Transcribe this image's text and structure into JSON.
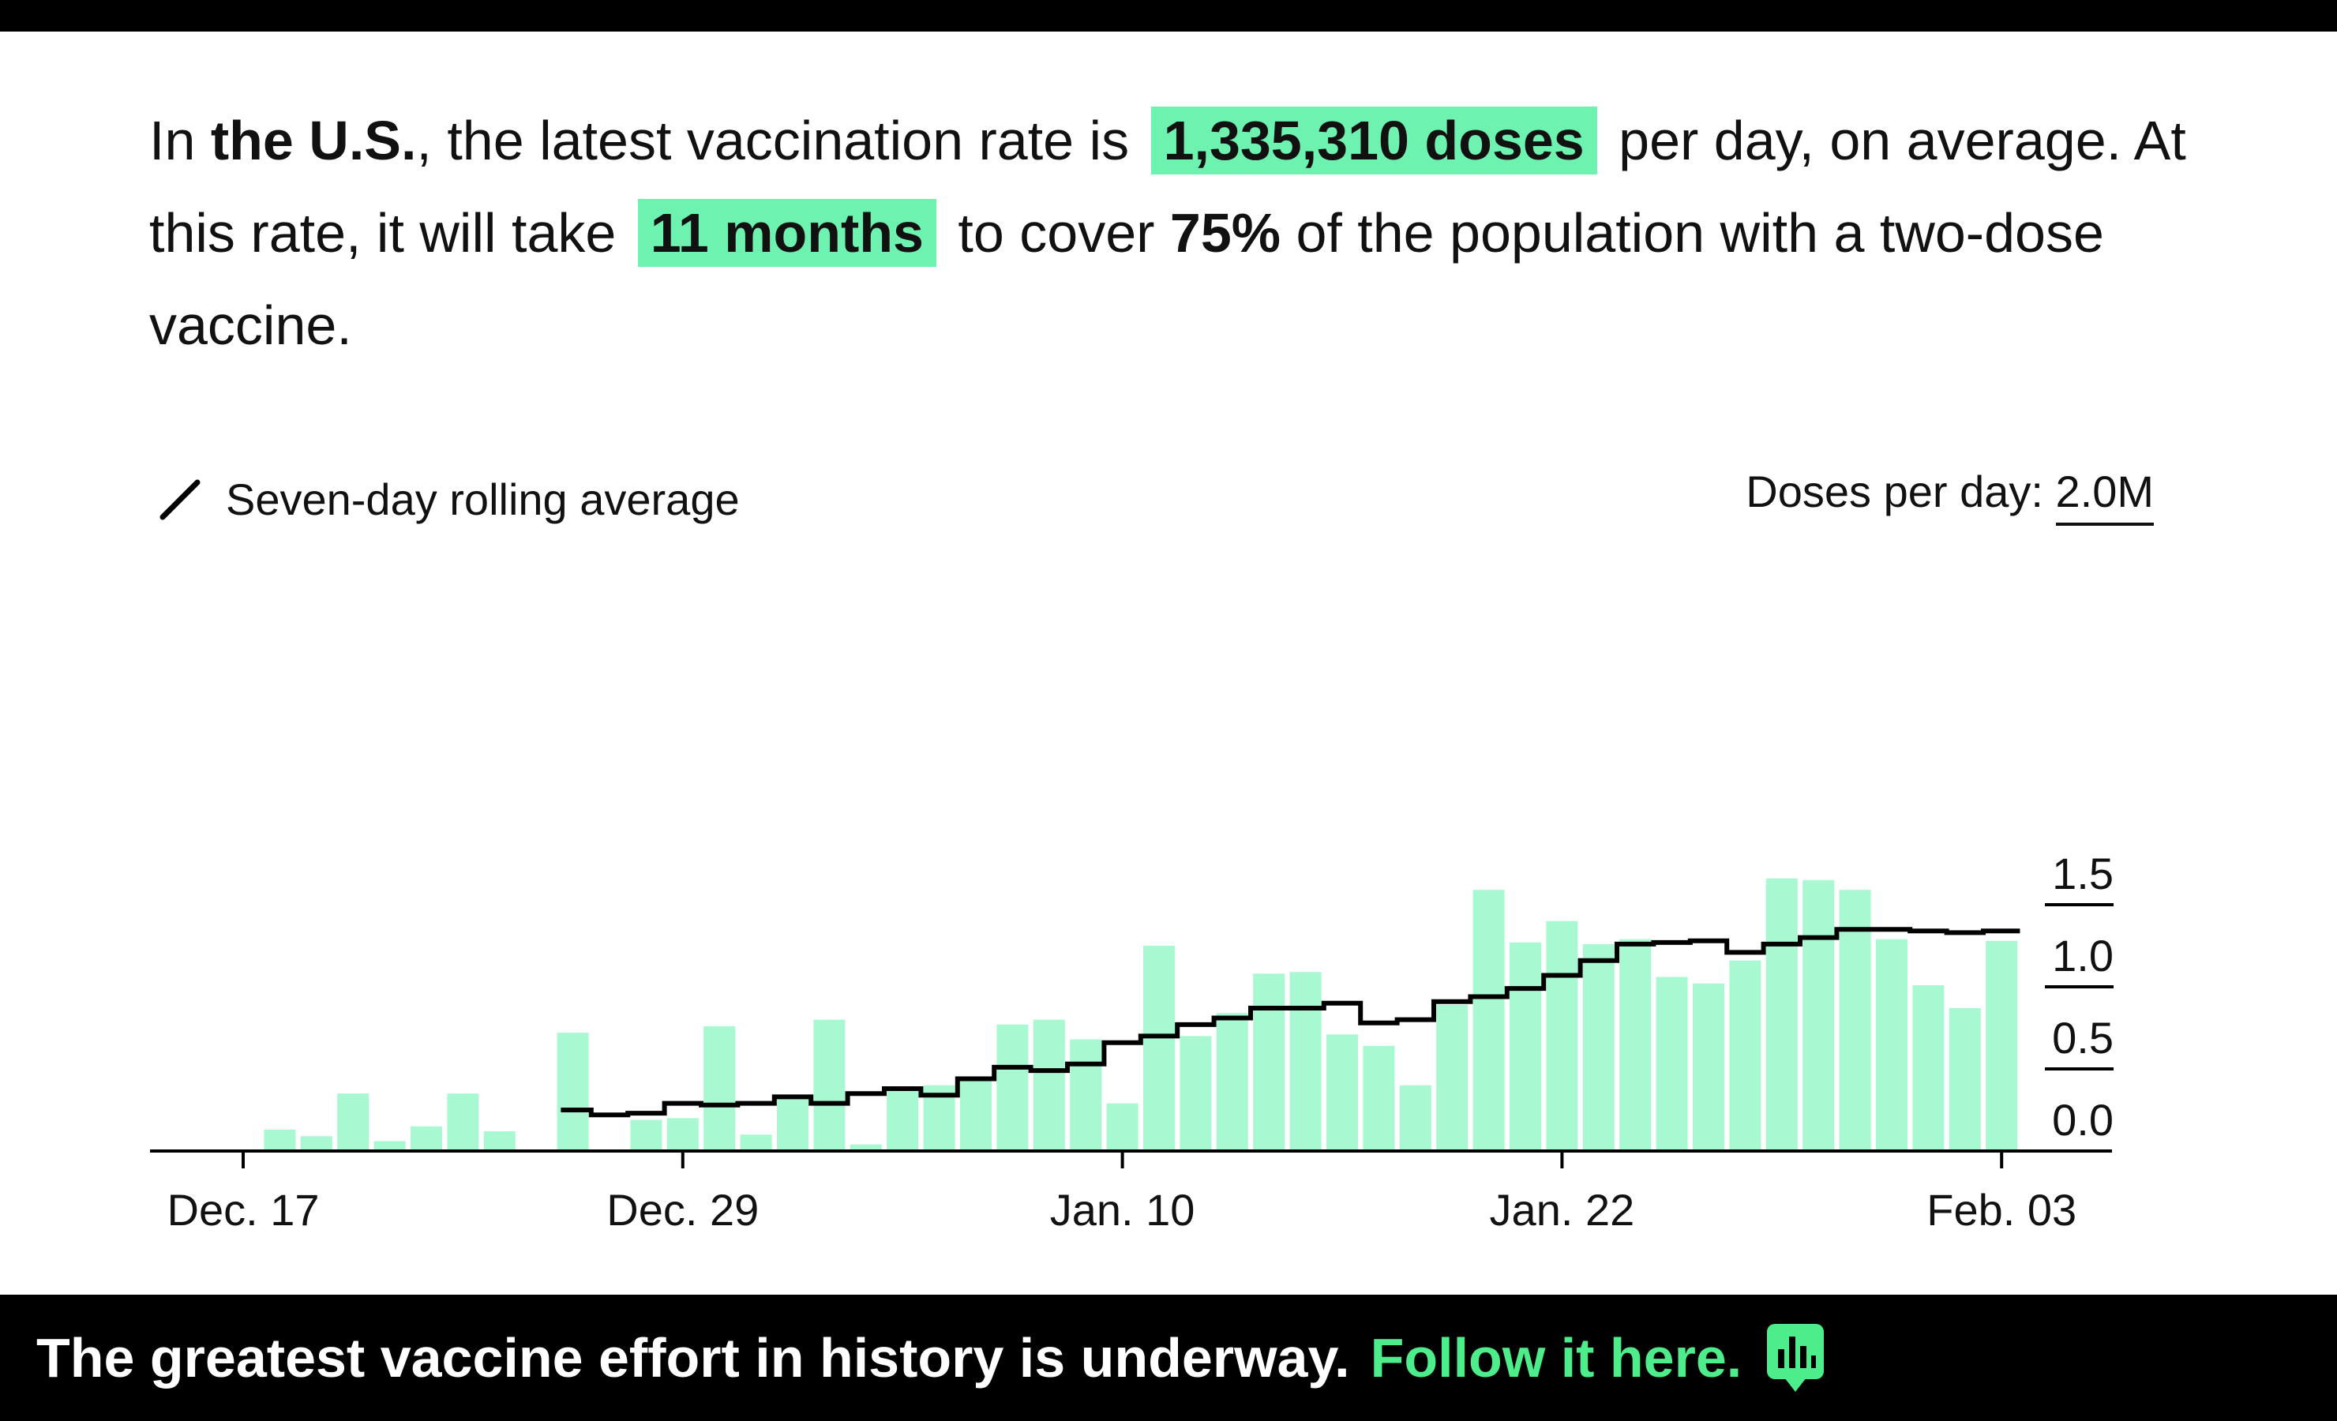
{
  "headline": {
    "p1": "In ",
    "region": "the U.S.",
    "p2": ", the latest vaccination rate is ",
    "rate": "1,335,310 doses",
    "p3": " per day, on average. At this rate, it will take ",
    "duration": "11 months",
    "p4": " to cover ",
    "percent": "75%",
    "p5": " of the population with a two-dose vaccine."
  },
  "legend": {
    "label": "Seven-day rolling average"
  },
  "units": {
    "prefix": "Doses per day: ",
    "value": "2.0M"
  },
  "footer": {
    "text": "The greatest vaccine effort in history is underway.",
    "link": "Follow it here.",
    "icon": "bar-chart-chat-icon"
  },
  "colors": {
    "bar": "#a8f9d2",
    "line": "#000000",
    "highlight": "#6ef2b0",
    "footer_link": "#4eed8c"
  },
  "chart_data": {
    "type": "bar",
    "x_start": "2020-12-17",
    "x_end": "2021-02-03",
    "xticks": [
      "Dec. 17",
      "Dec. 29",
      "Jan. 10",
      "Jan. 22",
      "Feb. 03"
    ],
    "ylim": [
      0,
      2.0
    ],
    "yticks": [
      "0.0",
      "0.5",
      "1.0",
      "1.5"
    ],
    "ylabel": "Doses per day",
    "series": [
      {
        "name": "Daily doses",
        "type": "bar",
        "values": [
          0,
          0.13,
          0.09,
          0.35,
          0.06,
          0.15,
          0.35,
          0.12,
          0,
          0.72,
          0,
          0.19,
          0.2,
          0.76,
          0.1,
          0.32,
          0.8,
          0.04,
          0.38,
          0.4,
          0.44,
          0.77,
          0.8,
          0.68,
          0.29,
          1.25,
          0.7,
          0.84,
          1.08,
          1.09,
          0.71,
          0.64,
          0.4,
          0.89,
          1.59,
          1.27,
          1.4,
          1.26,
          1.29,
          1.06,
          1.02,
          1.16,
          1.66,
          1.65,
          1.59,
          1.29,
          1.01,
          0.87,
          1.28
        ]
      },
      {
        "name": "Seven-day rolling average",
        "type": "line",
        "values": [
          null,
          null,
          null,
          null,
          null,
          null,
          null,
          null,
          null,
          0.25,
          0.22,
          0.23,
          0.29,
          0.28,
          0.29,
          0.33,
          0.29,
          0.35,
          0.38,
          0.34,
          0.44,
          0.51,
          0.49,
          0.53,
          0.66,
          0.7,
          0.77,
          0.81,
          0.87,
          0.87,
          0.9,
          0.78,
          0.8,
          0.91,
          0.94,
          0.99,
          1.07,
          1.16,
          1.26,
          1.27,
          1.28,
          1.21,
          1.26,
          1.3,
          1.35,
          1.35,
          1.34,
          1.33,
          1.34
        ]
      }
    ]
  }
}
